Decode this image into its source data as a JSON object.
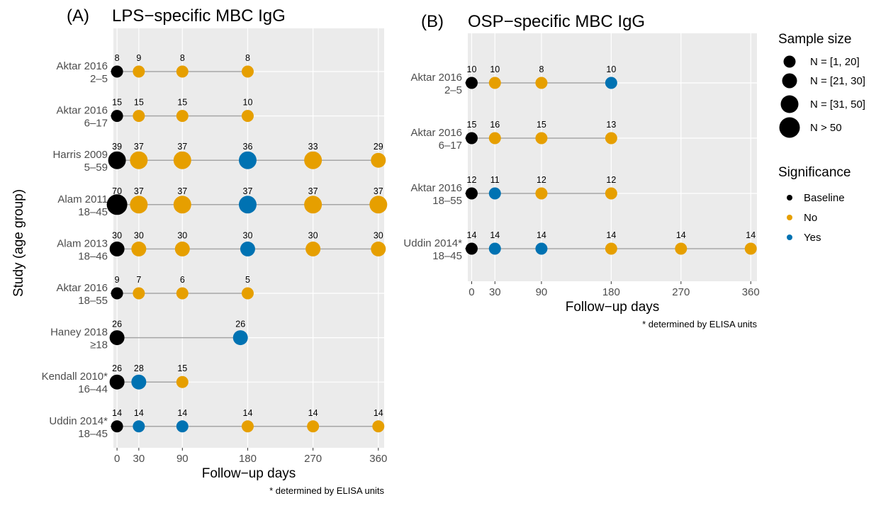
{
  "colors": {
    "Baseline": "#000000",
    "No": "#E69F00",
    "Yes": "#0072B2",
    "panel_bg": "#EBEBEB",
    "grid": "#FFFFFF",
    "connector": "#A6A6A6"
  },
  "ylabel": "Study (age group)",
  "legend": {
    "size_title": "Sample size",
    "size_items": [
      "N = [1, 20]",
      "N = [21, 30]",
      "N = [31, 50]",
      "N > 50"
    ],
    "sig_title": "Significance",
    "sig_items": [
      "Baseline",
      "No",
      "Yes"
    ]
  },
  "chart_data": [
    {
      "type": "scatter",
      "panel_letter": "(A)",
      "title": "LPS−specific MBC IgG",
      "xlabel": "Follow−up days",
      "ylabel": "Study (age group)",
      "note": "* determined by ELISA units",
      "xlim": [
        -5,
        368
      ],
      "xticks": [
        0,
        30,
        90,
        180,
        270,
        360
      ],
      "grid": true,
      "studies": [
        {
          "label": [
            "Aktar 2016",
            "2–5"
          ],
          "points": [
            {
              "x": 0,
              "n": 8,
              "sig": "Baseline"
            },
            {
              "x": 30,
              "n": 9,
              "sig": "No"
            },
            {
              "x": 90,
              "n": 8,
              "sig": "No"
            },
            {
              "x": 180,
              "n": 8,
              "sig": "No"
            }
          ]
        },
        {
          "label": [
            "Aktar 2016",
            "6–17"
          ],
          "points": [
            {
              "x": 0,
              "n": 15,
              "sig": "Baseline"
            },
            {
              "x": 30,
              "n": 15,
              "sig": "No"
            },
            {
              "x": 90,
              "n": 15,
              "sig": "No"
            },
            {
              "x": 180,
              "n": 10,
              "sig": "No"
            }
          ]
        },
        {
          "label": [
            "Harris 2009",
            "5–59"
          ],
          "points": [
            {
              "x": 0,
              "n": 39,
              "sig": "Baseline"
            },
            {
              "x": 30,
              "n": 37,
              "sig": "No"
            },
            {
              "x": 90,
              "n": 37,
              "sig": "No"
            },
            {
              "x": 180,
              "n": 36,
              "sig": "Yes"
            },
            {
              "x": 270,
              "n": 33,
              "sig": "No"
            },
            {
              "x": 360,
              "n": 29,
              "sig": "No"
            }
          ]
        },
        {
          "label": [
            "Alam 2011",
            "18–45"
          ],
          "points": [
            {
              "x": 0,
              "n": 70,
              "sig": "Baseline"
            },
            {
              "x": 30,
              "n": 37,
              "sig": "No"
            },
            {
              "x": 90,
              "n": 37,
              "sig": "No"
            },
            {
              "x": 180,
              "n": 37,
              "sig": "Yes"
            },
            {
              "x": 270,
              "n": 37,
              "sig": "No"
            },
            {
              "x": 360,
              "n": 37,
              "sig": "No"
            }
          ]
        },
        {
          "label": [
            "Alam 2013",
            "18–46"
          ],
          "points": [
            {
              "x": 0,
              "n": 30,
              "sig": "Baseline"
            },
            {
              "x": 30,
              "n": 30,
              "sig": "No"
            },
            {
              "x": 90,
              "n": 30,
              "sig": "No"
            },
            {
              "x": 180,
              "n": 30,
              "sig": "Yes"
            },
            {
              "x": 270,
              "n": 30,
              "sig": "No"
            },
            {
              "x": 360,
              "n": 30,
              "sig": "No"
            }
          ]
        },
        {
          "label": [
            "Aktar 2016",
            "18–55"
          ],
          "points": [
            {
              "x": 0,
              "n": 9,
              "sig": "Baseline"
            },
            {
              "x": 30,
              "n": 7,
              "sig": "No"
            },
            {
              "x": 90,
              "n": 6,
              "sig": "No"
            },
            {
              "x": 180,
              "n": 5,
              "sig": "No"
            }
          ]
        },
        {
          "label": [
            "Haney 2018",
            "≥18"
          ],
          "points": [
            {
              "x": 0,
              "n": 26,
              "sig": "Baseline"
            },
            {
              "x": 170,
              "n": 26,
              "sig": "Yes"
            }
          ]
        },
        {
          "label": [
            "Kendall 2010*",
            "16–44"
          ],
          "points": [
            {
              "x": 0,
              "n": 26,
              "sig": "Baseline"
            },
            {
              "x": 30,
              "n": 28,
              "sig": "Yes"
            },
            {
              "x": 90,
              "n": 15,
              "sig": "No"
            }
          ]
        },
        {
          "label": [
            "Uddin 2014*",
            "18–45"
          ],
          "points": [
            {
              "x": 0,
              "n": 14,
              "sig": "Baseline"
            },
            {
              "x": 30,
              "n": 14,
              "sig": "Yes"
            },
            {
              "x": 90,
              "n": 14,
              "sig": "Yes"
            },
            {
              "x": 180,
              "n": 14,
              "sig": "No"
            },
            {
              "x": 270,
              "n": 14,
              "sig": "No"
            },
            {
              "x": 360,
              "n": 14,
              "sig": "No"
            }
          ]
        }
      ]
    },
    {
      "type": "scatter",
      "panel_letter": "(B)",
      "title": "OSP−specific MBC IgG",
      "xlabel": "Follow−up days",
      "ylabel": "",
      "note": "* determined by ELISA units",
      "xlim": [
        -5,
        368
      ],
      "xticks": [
        0,
        30,
        90,
        180,
        270,
        360
      ],
      "grid": true,
      "studies": [
        {
          "label": [
            "Aktar 2016",
            "2–5"
          ],
          "points": [
            {
              "x": 0,
              "n": 10,
              "sig": "Baseline"
            },
            {
              "x": 30,
              "n": 10,
              "sig": "No"
            },
            {
              "x": 90,
              "n": 8,
              "sig": "No"
            },
            {
              "x": 180,
              "n": 10,
              "sig": "Yes"
            }
          ]
        },
        {
          "label": [
            "Aktar 2016",
            "6–17"
          ],
          "points": [
            {
              "x": 0,
              "n": 15,
              "sig": "Baseline"
            },
            {
              "x": 30,
              "n": 16,
              "sig": "No"
            },
            {
              "x": 90,
              "n": 15,
              "sig": "No"
            },
            {
              "x": 180,
              "n": 13,
              "sig": "No"
            }
          ]
        },
        {
          "label": [
            "Aktar 2016",
            "18–55"
          ],
          "points": [
            {
              "x": 0,
              "n": 12,
              "sig": "Baseline"
            },
            {
              "x": 30,
              "n": 11,
              "sig": "Yes"
            },
            {
              "x": 90,
              "n": 12,
              "sig": "No"
            },
            {
              "x": 180,
              "n": 12,
              "sig": "No"
            }
          ]
        },
        {
          "label": [
            "Uddin 2014*",
            "18–45"
          ],
          "points": [
            {
              "x": 0,
              "n": 14,
              "sig": "Baseline"
            },
            {
              "x": 30,
              "n": 14,
              "sig": "Yes"
            },
            {
              "x": 90,
              "n": 14,
              "sig": "Yes"
            },
            {
              "x": 180,
              "n": 14,
              "sig": "No"
            },
            {
              "x": 270,
              "n": 14,
              "sig": "No"
            },
            {
              "x": 360,
              "n": 14,
              "sig": "No"
            }
          ]
        }
      ]
    }
  ]
}
